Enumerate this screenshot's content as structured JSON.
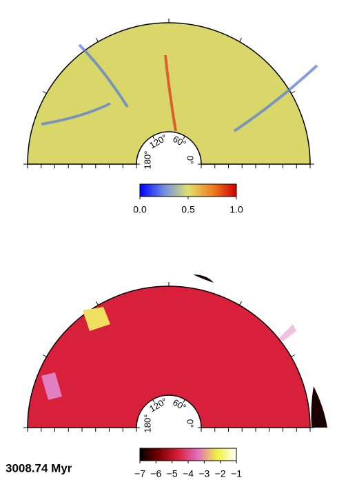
{
  "panels": [
    {
      "angle_ticks": [
        {
          "value": 180,
          "label": "180°"
        },
        {
          "value": 120,
          "label": "120°"
        },
        {
          "value": 60,
          "label": "60°"
        },
        {
          "value": 0,
          "label": "0°"
        }
      ],
      "field_color": "#d9d66a",
      "colorbar": {
        "colors": [
          "#0000ff",
          "#6f8fe0",
          "#e0e070",
          "#f08020",
          "#d00000"
        ],
        "lim": [
          0,
          1
        ],
        "ticks": [
          {
            "value": 0,
            "label": "0.0"
          },
          {
            "value": 0.5,
            "label": "0.5"
          },
          {
            "value": 1,
            "label": "1.0"
          }
        ]
      }
    },
    {
      "angle_ticks": [
        {
          "value": 180,
          "label": "180°"
        },
        {
          "value": 120,
          "label": "120°"
        },
        {
          "value": 60,
          "label": "60°"
        },
        {
          "value": 0,
          "label": "0°"
        }
      ],
      "field_color": "#d8203a",
      "colorbar": {
        "colors": [
          "#000000",
          "#7a0000",
          "#d8203a",
          "#e070c0",
          "#f0f040",
          "#ffffff"
        ],
        "lim": [
          -7,
          -1
        ],
        "ticks": [
          {
            "value": -7,
            "label": "−7"
          },
          {
            "value": -6,
            "label": "−6"
          },
          {
            "value": -5,
            "label": "−5"
          },
          {
            "value": -4,
            "label": "−4"
          },
          {
            "value": -3,
            "label": "−3"
          },
          {
            "value": -2,
            "label": "−2"
          },
          {
            "value": -1,
            "label": "−1"
          }
        ]
      }
    }
  ],
  "time_label": "3008.74 Myr"
}
